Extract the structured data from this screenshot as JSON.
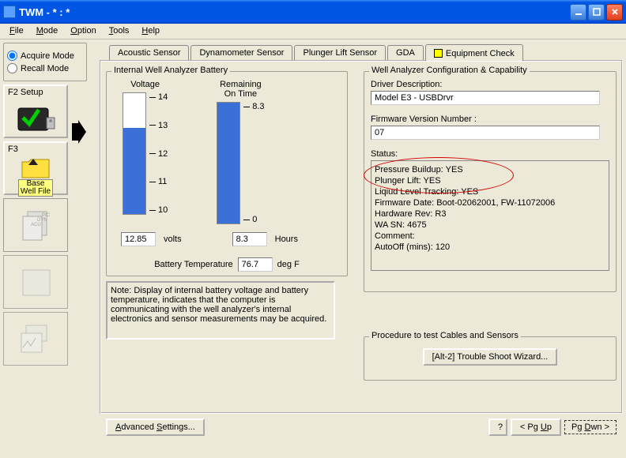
{
  "window": {
    "title": "TWM  -  * : *"
  },
  "menubar": [
    "File",
    "Mode",
    "Option",
    "Tools",
    "Help"
  ],
  "mode": {
    "acquire": "Acquire Mode",
    "recall": "Recall Mode",
    "selected": "acquire"
  },
  "left_buttons": {
    "f2": {
      "label": "F2 Setup"
    },
    "f3": {
      "label": "F3",
      "sub": "Base\nWell File"
    }
  },
  "tabs": {
    "items": [
      "Acoustic Sensor",
      "Dynamometer Sensor",
      "Plunger Lift Sensor",
      "GDA",
      "Equipment Check"
    ],
    "active": 4
  },
  "battery": {
    "group_title": "Internal Well Analyzer Battery",
    "voltage": {
      "label": "Voltage",
      "ticks": [
        14,
        13,
        12,
        11,
        10
      ],
      "min": 10,
      "max": 14,
      "value": 12.85,
      "value_str": "12.85",
      "units": "volts"
    },
    "remaining": {
      "label": "Remaining\nOn Time",
      "ticks": [
        8.3,
        0.0
      ],
      "min": 0.0,
      "max": 8.3,
      "value": 8.3,
      "value_str": "8.3",
      "units": "Hours"
    },
    "temp": {
      "label": "Battery Temperature",
      "value": "76.7",
      "units": "deg F"
    }
  },
  "note": "Note:  Display of internal battery voltage and battery temperature, indicates that the computer is communicating with the well analyzer's internal electronics and sensor measurements may be acquired.",
  "config": {
    "group_title": "Well Analyzer Configuration & Capability",
    "driver_label": "Driver Description:",
    "driver_value": "Model E3 - USBDrvr",
    "fw_label": "Firmware Version Number :",
    "fw_value": "07",
    "status_label": "Status:",
    "status_lines": [
      "Pressure Buildup: YES",
      "Plunger Lift: YES",
      "Liqiud Level Tracking: YES",
      "Firmware Date: Boot-02062001, FW-11072006",
      "Hardware Rev: R3",
      "WA SN: 4675",
      "Comment:",
      "AutoOff (mins): 120"
    ]
  },
  "procedure": {
    "label": "Procedure to test Cables and Sensors",
    "button": "[Alt-2]  Trouble Shoot Wizard..."
  },
  "bottom": {
    "advanced": "Advanced Settings...",
    "help": "?",
    "pgup": "< Pg Up",
    "pgdn": "Pg Dwn >"
  },
  "colors": {
    "bar": "#3a70d8",
    "ellipse": "#d40000"
  }
}
